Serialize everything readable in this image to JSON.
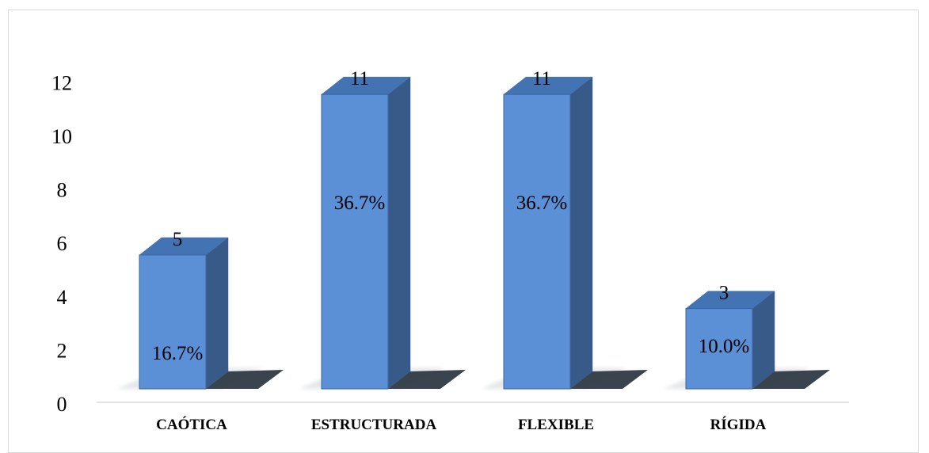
{
  "chart_data": {
    "type": "bar",
    "style": "3d-column",
    "categories": [
      "CAÓTICA",
      "ESTRUCTURADA",
      "FLEXIBLE",
      "RÍGIDA"
    ],
    "values": [
      5,
      11,
      11,
      3
    ],
    "value_labels": [
      "5",
      "11",
      "11",
      "3"
    ],
    "percent_labels": [
      "16.7%",
      "36.7%",
      "36.7%",
      "10.0%"
    ],
    "yticks": [
      "0",
      "2",
      "4",
      "6",
      "8",
      "10",
      "12"
    ],
    "ylim": [
      0,
      12
    ],
    "grid": false,
    "legend": false,
    "colors": {
      "bar_front": "#5b8fd6",
      "bar_top": "#4473b3",
      "bar_side": "#385a88",
      "bar_edge": "#3c66a1",
      "shadow": "#2f3a45",
      "axis_line": "#d9d9d9"
    }
  }
}
